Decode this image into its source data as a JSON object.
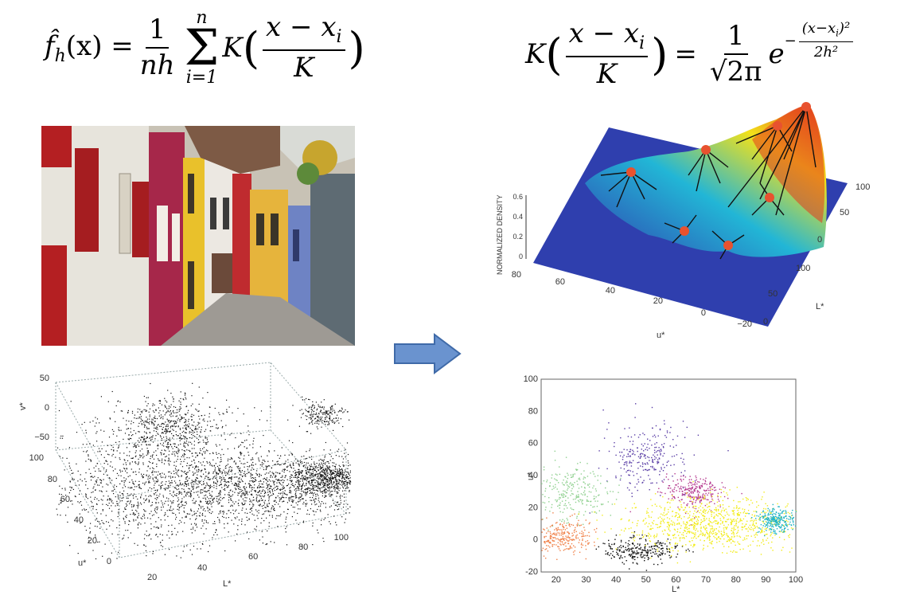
{
  "formula_left": {
    "lhs": "f̂",
    "lhs_sub": "h",
    "lhs_arg": "(x) =",
    "frac_num": "1",
    "frac_den": "nh",
    "sum_top": "n",
    "sum_bottom": "i=1",
    "kernel": "K",
    "arg_num": "x − x",
    "arg_num_sub": "i",
    "arg_den": "K"
  },
  "formula_right": {
    "kernel": "K",
    "arg_num": "x − x",
    "arg_num_sub": "i",
    "arg_den": "K",
    "eq": "=",
    "frac_num": "1",
    "frac_den": "√2π",
    "exp_base": "e",
    "exp_num": "(x−x",
    "exp_num_sub": "i",
    "exp_num_tail": ")²",
    "exp_sign": "−",
    "exp_den": "2h²"
  },
  "colors": {
    "arrow": "#6a93cf",
    "arrow_stroke": "#3f6aa8",
    "density_low": "#2f3fae",
    "density_mid": "#22b6d6",
    "density_high": "#f2e11a",
    "density_peak": "#e33a1e",
    "mode_marker": "#e8522f",
    "cluster_purple": "#5a3ea6",
    "cluster_magenta": "#b53a8f",
    "cluster_green": "#8fd08f",
    "cluster_orange": "#f0824a",
    "cluster_black": "#111111",
    "cluster_yellow": "#f2ec1c",
    "cluster_cyan": "#1fb3c4"
  },
  "scatter3d": {
    "ylabel": "v*",
    "xlabel": "L*",
    "zlabel": "u*",
    "v_ticks": [
      "50",
      "0",
      "−50"
    ],
    "u_ticks": [
      "100",
      "80",
      "60",
      "40",
      "20",
      "0"
    ],
    "l_ticks": [
      "20",
      "40",
      "60",
      "80",
      "100"
    ]
  },
  "density_surface": {
    "zlabel": "NORMALIZED DENSITY",
    "z_ticks": [
      "0.6",
      "0.4",
      "0.2",
      "0"
    ],
    "u_label": "u*",
    "u_ticks": [
      "80",
      "60",
      "40",
      "20",
      "0",
      "−20"
    ],
    "l_label": "L*",
    "l_ticks": [
      "0",
      "50",
      "100"
    ],
    "v_ticks": [
      "100",
      "50",
      "0"
    ],
    "mode_count_visible": 7
  },
  "chart_data": {
    "type": "scatter",
    "xlabel": "L*",
    "ylabel": "u*",
    "xlim": [
      15,
      100
    ],
    "ylim": [
      -20,
      100
    ],
    "x_ticks": [
      20,
      30,
      40,
      50,
      60,
      70,
      80,
      90,
      100
    ],
    "y_ticks": [
      -20,
      0,
      20,
      40,
      60,
      80,
      100
    ],
    "clusters": [
      {
        "color": "#5a3ea6",
        "center": [
          50,
          52
        ],
        "spread": [
          7,
          10
        ]
      },
      {
        "color": "#b53a8f",
        "center": [
          66,
          30
        ],
        "spread": [
          5,
          5
        ]
      },
      {
        "color": "#8fd08f",
        "center": [
          25,
          30
        ],
        "spread": [
          6,
          9
        ]
      },
      {
        "color": "#f0824a",
        "center": [
          22,
          2
        ],
        "spread": [
          5,
          5
        ]
      },
      {
        "color": "#111111",
        "center": [
          48,
          -6
        ],
        "spread": [
          6,
          4
        ]
      },
      {
        "color": "#f2ec1c",
        "center": [
          72,
          10
        ],
        "spread": [
          14,
          8
        ]
      },
      {
        "color": "#1fb3c4",
        "center": [
          93,
          12
        ],
        "spread": [
          3,
          4
        ]
      }
    ]
  }
}
